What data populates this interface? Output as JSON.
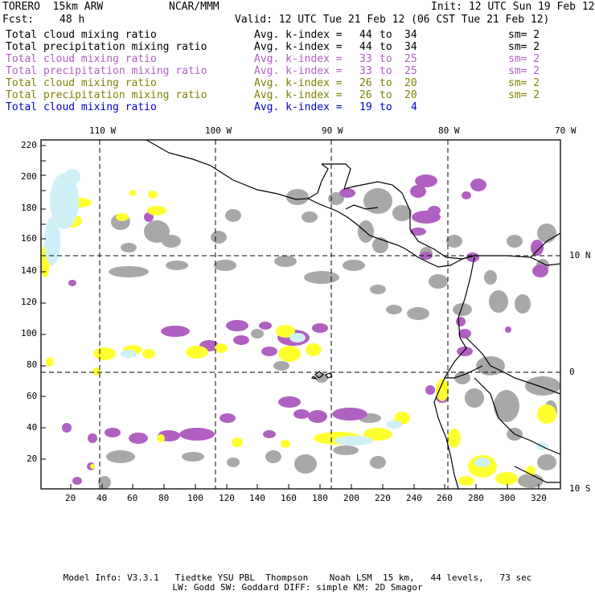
{
  "header": {
    "model": "TORERO  15km ARW",
    "org": "NCAR/MMM",
    "init": "Init: 12 UTC Sun 19 Feb 12",
    "fcst_label": "Fcst:",
    "fcst_value": "48 h",
    "valid": "Valid: 12 UTC Tue 21 Feb 12 (06 CST Tue 21 Feb 12)"
  },
  "legend": [
    {
      "field": "Total cloud mixing ratio",
      "stat": "Avg. k-index =",
      "from": "44",
      "to": "to",
      "end": "34",
      "sm": "sm= 2",
      "color": "#000000"
    },
    {
      "field": "Total precipitation mixing ratio",
      "stat": "Avg. k-index =",
      "from": "44",
      "to": "to",
      "end": "34",
      "sm": "sm= 2",
      "color": "#000000"
    },
    {
      "field": "Total cloud mixing ratio",
      "stat": "Avg. k-index =",
      "from": "33",
      "to": "to",
      "end": "25",
      "sm": "sm= 2",
      "color": "#b060c0"
    },
    {
      "field": "Total precipitation mixing ratio",
      "stat": "Avg. k-index =",
      "from": "33",
      "to": "to",
      "end": "25",
      "sm": "sm= 2",
      "color": "#b060c0"
    },
    {
      "field": "Total cloud mixing ratio",
      "stat": "Avg. k-index =",
      "from": "26",
      "to": "to",
      "end": "20",
      "sm": "sm= 2",
      "color": "#808000"
    },
    {
      "field": "Total precipitation mixing ratio",
      "stat": "Avg. k-index =",
      "from": "26",
      "to": "to",
      "end": "20",
      "sm": "sm= 2",
      "color": "#808000"
    },
    {
      "field": "Total cloud mixing ratio",
      "stat": "Avg. k-index =",
      "from": "19",
      "to": "to",
      "end": "4",
      "sm": "",
      "color": "#0000d0"
    }
  ],
  "map": {
    "lon_labels": [
      "110 W",
      "100 W",
      "90 W",
      "80 W",
      "70 W"
    ],
    "lat_labels": [
      "10 N",
      "0",
      "10 S"
    ],
    "y_ticks": [
      "220",
      "200",
      "180",
      "160",
      "140",
      "120",
      "100",
      "80",
      "60",
      "40",
      "20"
    ],
    "x_ticks": [
      "20",
      "40",
      "60",
      "80",
      "100",
      "120",
      "140",
      "160",
      "180",
      "200",
      "220",
      "240",
      "260",
      "280",
      "300",
      "320"
    ],
    "colors": {
      "gray": "#a8a8a8",
      "purple": "#b060c0",
      "yellow": "#ffff30",
      "cyan": "#d0f0f8"
    }
  },
  "footer": {
    "line1": "Model Info: V3.3.1   Tiedtke YSU PBL  Thompson    Noah LSM  15 km,   44 levels,   73 sec",
    "line2": "LW: Godd SW: Goddard DIFF: simple KM: 2D Smagor"
  }
}
